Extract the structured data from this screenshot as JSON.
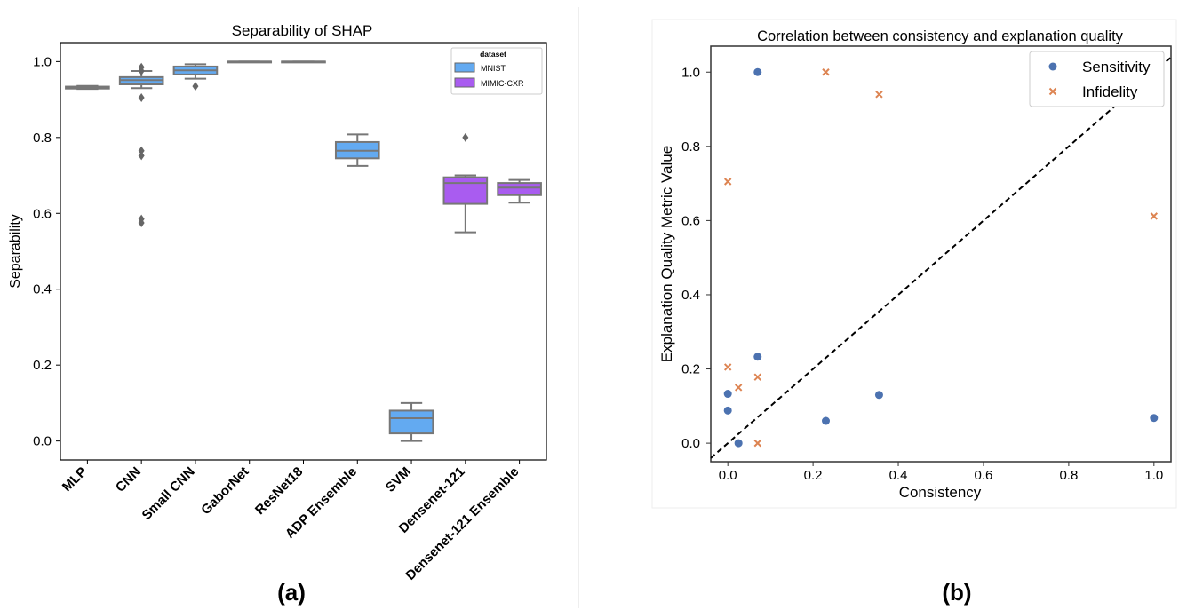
{
  "chart_data": [
    {
      "type": "box",
      "panel_label": "(a)",
      "title": "Separability of SHAP",
      "ylabel": "Separability",
      "xlabel": "",
      "ylim": [
        -0.05,
        1.05
      ],
      "yticks": [
        "0.0",
        "0.2",
        "0.4",
        "0.6",
        "0.8",
        "1.0"
      ],
      "categories": [
        "MLP",
        "CNN",
        "Small CNN",
        "GaborNet",
        "ResNet18",
        "ADP Ensemble",
        "SVM",
        "Densenet-121",
        "Densenet-121 Ensemble"
      ],
      "legend": {
        "title": "dataset",
        "position": "top-right",
        "entries": [
          {
            "name": "MNIST",
            "color": "#63aaf1"
          },
          {
            "name": "MIMIC-CXR",
            "color": "#a95cf0"
          }
        ]
      },
      "boxes": [
        {
          "category": "MLP",
          "dataset": "MNIST",
          "min": 0.928,
          "q1": 0.929,
          "median": 0.931,
          "q3": 0.934,
          "max": 0.936,
          "outliers": []
        },
        {
          "category": "CNN",
          "dataset": "MNIST",
          "min": 0.93,
          "q1": 0.94,
          "median": 0.951,
          "q3": 0.959,
          "max": 0.975,
          "outliers": [
            0.985,
            0.975,
            0.905,
            0.765,
            0.752,
            0.585,
            0.575
          ]
        },
        {
          "category": "Small CNN",
          "dataset": "MNIST",
          "min": 0.955,
          "q1": 0.966,
          "median": 0.977,
          "q3": 0.987,
          "max": 0.993,
          "outliers": [
            0.935
          ]
        },
        {
          "category": "GaborNet",
          "dataset": "MNIST",
          "min": 0.999,
          "q1": 0.999,
          "median": 1.0,
          "q3": 1.0,
          "max": 1.0,
          "outliers": []
        },
        {
          "category": "ResNet18",
          "dataset": "MNIST",
          "min": 0.999,
          "q1": 0.999,
          "median": 1.0,
          "q3": 1.0,
          "max": 1.0,
          "outliers": []
        },
        {
          "category": "ADP Ensemble",
          "dataset": "MNIST",
          "min": 0.725,
          "q1": 0.745,
          "median": 0.765,
          "q3": 0.788,
          "max": 0.808,
          "outliers": []
        },
        {
          "category": "SVM",
          "dataset": "MNIST",
          "min": 0.0,
          "q1": 0.02,
          "median": 0.06,
          "q3": 0.08,
          "max": 0.1,
          "outliers": []
        },
        {
          "category": "Densenet-121",
          "dataset": "MIMIC-CXR",
          "min": 0.55,
          "q1": 0.625,
          "median": 0.68,
          "q3": 0.695,
          "max": 0.7,
          "outliers": [
            0.8
          ]
        },
        {
          "category": "Densenet-121 Ensemble",
          "dataset": "MIMIC-CXR",
          "min": 0.628,
          "q1": 0.648,
          "median": 0.668,
          "q3": 0.68,
          "max": 0.688,
          "outliers": []
        }
      ]
    },
    {
      "type": "scatter",
      "panel_label": "(b)",
      "title": "Correlation between consistency and explanation quality",
      "xlabel": "Consistency",
      "ylabel": "Explanation Quality Metric Value",
      "xlim": [
        -0.04,
        1.04
      ],
      "ylim": [
        -0.05,
        1.07
      ],
      "xticks": [
        "0.0",
        "0.2",
        "0.4",
        "0.6",
        "0.8",
        "1.0"
      ],
      "yticks": [
        "0.0",
        "0.2",
        "0.4",
        "0.6",
        "0.8",
        "1.0"
      ],
      "reference_line": "y = x (dashed black)",
      "legend_position": "top-right",
      "series": [
        {
          "name": "Sensitivity",
          "marker": "circle",
          "color": "#4c72b0",
          "x": [
            0.07,
            0.0,
            0.0,
            0.07,
            0.025,
            0.23,
            0.355,
            1.0
          ],
          "y": [
            1.0,
            0.133,
            0.088,
            0.233,
            0.0,
            0.06,
            0.13,
            0.068
          ]
        },
        {
          "name": "Infidelity",
          "marker": "x",
          "color": "#dd8452",
          "x": [
            0.23,
            0.355,
            0.0,
            1.0,
            0.0,
            0.025,
            0.07,
            0.07
          ],
          "y": [
            1.0,
            0.94,
            0.705,
            0.612,
            0.205,
            0.15,
            0.178,
            0.0
          ]
        }
      ]
    }
  ]
}
